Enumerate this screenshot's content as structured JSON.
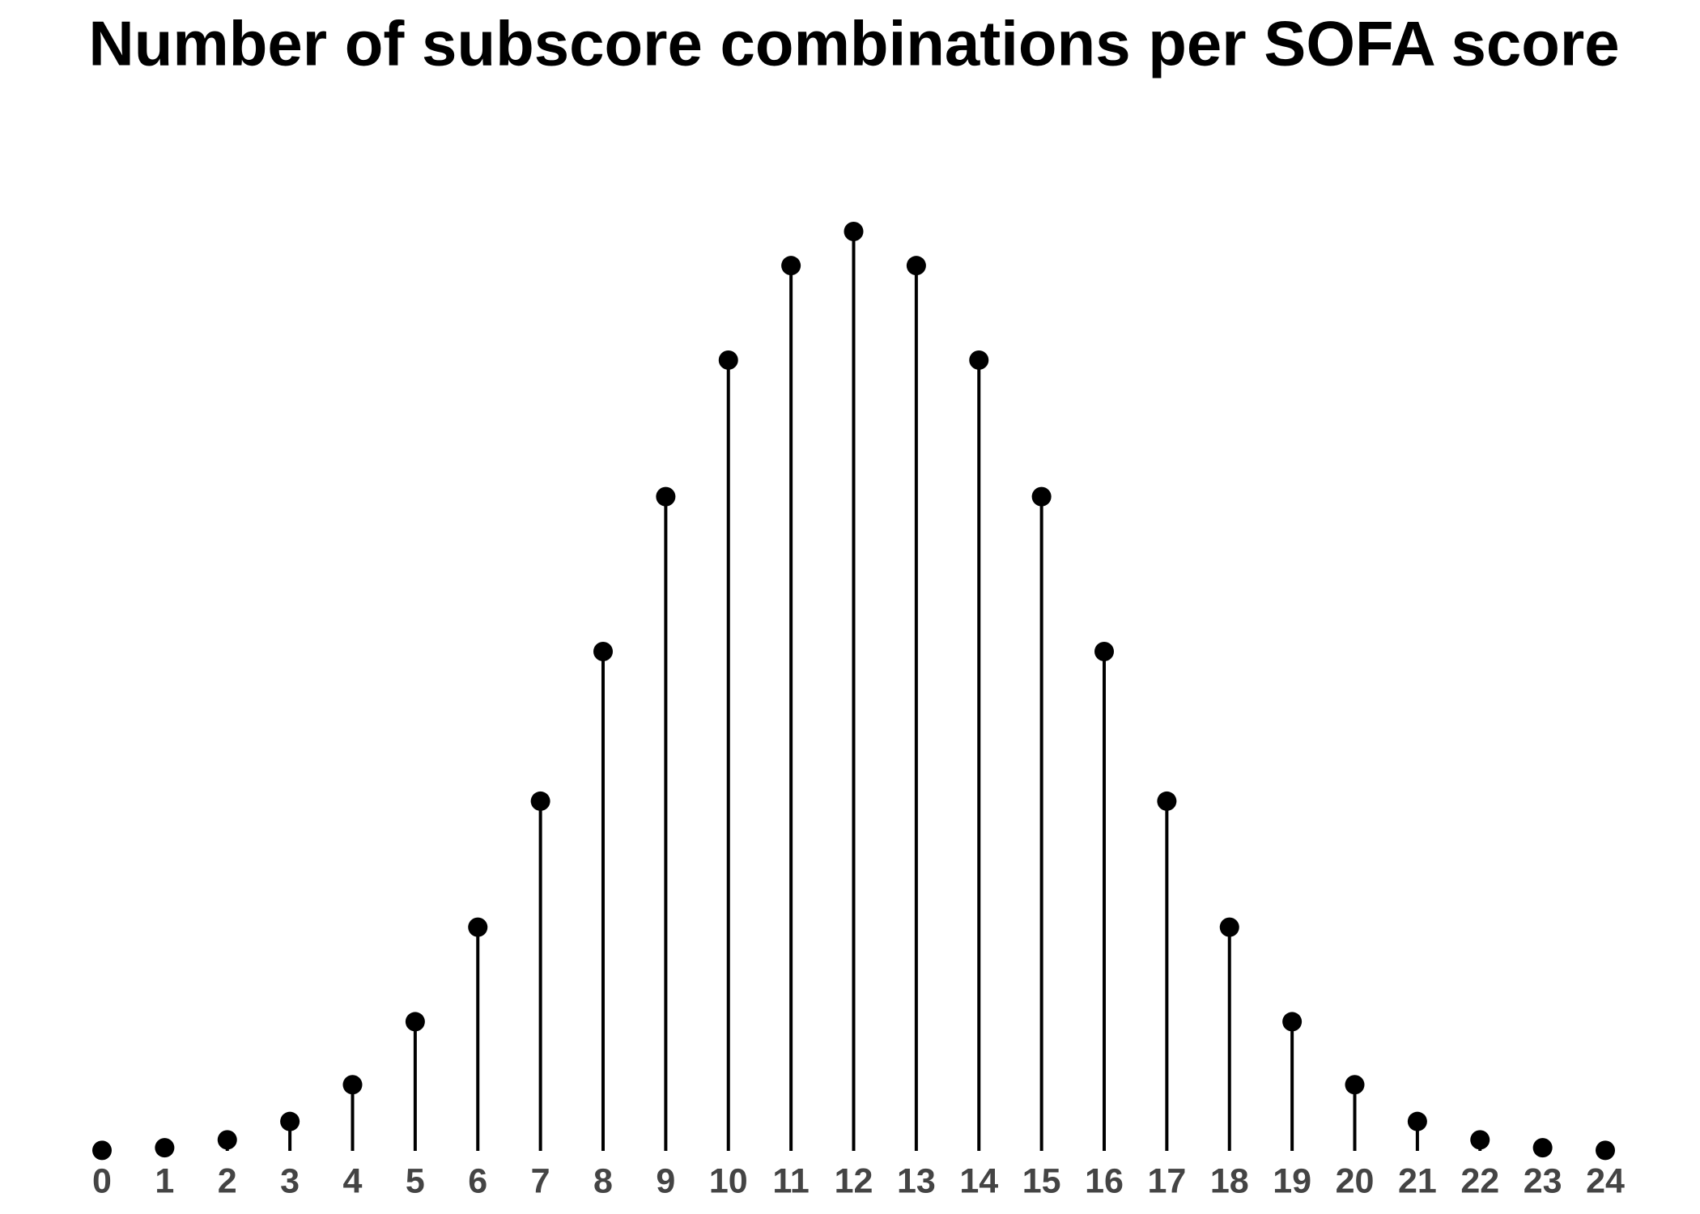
{
  "chart_data": {
    "type": "lollipop",
    "title": "Number of subscore combinations per SOFA score",
    "categories": [
      "0",
      "1",
      "2",
      "3",
      "4",
      "5",
      "6",
      "7",
      "8",
      "9",
      "10",
      "11",
      "12",
      "13",
      "14",
      "15",
      "16",
      "17",
      "18",
      "19",
      "20",
      "21",
      "22",
      "23",
      "24"
    ],
    "values": [
      1,
      6,
      21,
      56,
      126,
      246,
      426,
      666,
      951,
      1246,
      1506,
      1686,
      1751,
      1686,
      1506,
      1246,
      951,
      666,
      426,
      246,
      126,
      56,
      21,
      6,
      1
    ],
    "color": "#000000",
    "ylim": [
      0,
      1751
    ],
    "grid": false
  }
}
